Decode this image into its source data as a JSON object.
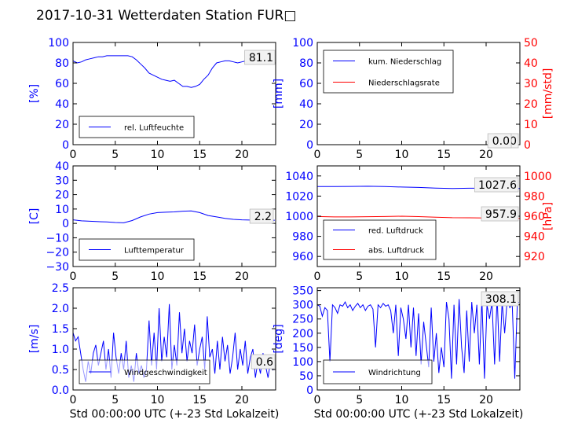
{
  "title": "2017-10-31 Wetterdaten Station FUR□",
  "colors": {
    "blue": "#0000ff",
    "red": "#ff0000",
    "black": "#000000"
  },
  "chart_data": [
    {
      "type": "line",
      "panel": "rel-humidity",
      "xlim": [
        0,
        24
      ],
      "ylim": [
        0,
        100
      ],
      "xticks": [
        0,
        5,
        10,
        15,
        20
      ],
      "yticks": [
        0,
        20,
        40,
        60,
        80,
        100
      ],
      "xlabel": "",
      "ylabel": "[%]",
      "legend": [
        "rel. Luftfeuchte"
      ],
      "legend_position": "lower-left",
      "value_box": "81.1",
      "series": [
        {
          "name": "rel. Luftfeuchte",
          "color": "#0000ff",
          "x": [
            0,
            0.5,
            1,
            1.5,
            2,
            2.5,
            3,
            3.5,
            4,
            4.5,
            5,
            5.5,
            6,
            6.5,
            7,
            7.5,
            8,
            8.5,
            9,
            9.5,
            10,
            10.5,
            11,
            11.5,
            12,
            12.5,
            13,
            13.5,
            14,
            14.5,
            15,
            15.5,
            16,
            16.5,
            17,
            17.5,
            18,
            18.5,
            19,
            19.5,
            20,
            20.5,
            21,
            21.5,
            22,
            22.5,
            23,
            23.5,
            23.9
          ],
          "y": [
            82,
            80,
            81,
            83,
            84,
            85,
            86,
            86,
            87,
            87,
            87,
            87,
            87,
            87,
            86,
            83,
            79,
            75,
            70,
            68,
            66,
            64,
            63,
            62,
            63,
            60,
            57,
            57,
            56,
            57,
            59,
            64,
            68,
            75,
            80,
            81,
            82,
            82,
            81,
            80,
            81,
            82,
            82,
            81,
            81,
            81,
            81,
            81,
            81
          ]
        }
      ]
    },
    {
      "type": "line",
      "panel": "precipitation",
      "xlim": [
        0,
        24
      ],
      "ylim": [
        0,
        100
      ],
      "ylim_right": [
        0,
        50
      ],
      "xticks": [
        0,
        5,
        10,
        15,
        20
      ],
      "yticks": [
        0,
        20,
        40,
        60,
        80,
        100
      ],
      "yticks_right": [
        0,
        10,
        20,
        30,
        40,
        50
      ],
      "xlabel": "",
      "ylabel": "[mm]",
      "ylabel_right": "[mm/std]",
      "legend": [
        "kum. Niederschlag",
        "Niederschlagsrate"
      ],
      "legend_position": "upper-left",
      "value_boxes": [
        "0.0",
        "0.0"
      ],
      "series": [
        {
          "name": "kum. Niederschlag",
          "color": "#0000ff",
          "axis": "left",
          "x": [
            0,
            24
          ],
          "y": [
            0,
            0
          ]
        },
        {
          "name": "Niederschlagsrate",
          "color": "#ff0000",
          "axis": "right",
          "x": [
            0,
            24
          ],
          "y": [
            0,
            0
          ]
        }
      ]
    },
    {
      "type": "line",
      "panel": "temperature",
      "xlim": [
        0,
        24
      ],
      "ylim": [
        -30,
        40
      ],
      "xticks": [
        0,
        5,
        10,
        15,
        20
      ],
      "yticks": [
        -30,
        -20,
        -10,
        0,
        10,
        20,
        30,
        40
      ],
      "xlabel": "",
      "ylabel": "[C]",
      "legend": [
        "Lufttemperatur"
      ],
      "legend_position": "lower-left",
      "value_box": "2.2",
      "series": [
        {
          "name": "Lufttemperatur",
          "color": "#0000ff",
          "x": [
            0,
            1,
            2,
            3,
            4,
            5,
            6,
            7,
            8,
            9,
            10,
            11,
            12,
            13,
            14,
            15,
            16,
            17,
            18,
            19,
            20,
            21,
            22,
            23,
            23.9
          ],
          "y": [
            2.5,
            1.8,
            1.5,
            1.2,
            1.0,
            0.6,
            0.4,
            2.0,
            4.5,
            6.5,
            7.5,
            7.8,
            8.0,
            8.5,
            8.7,
            7.5,
            5.5,
            4.5,
            3.5,
            2.8,
            2.5,
            2.3,
            2.2,
            2.2,
            2.2
          ]
        }
      ]
    },
    {
      "type": "line",
      "panel": "pressure",
      "xlim": [
        0,
        24
      ],
      "ylim": [
        950,
        1050
      ],
      "ylim_right": [
        910,
        1010
      ],
      "xticks": [
        0,
        5,
        10,
        15,
        20
      ],
      "yticks": [
        960,
        980,
        1000,
        1020,
        1040
      ],
      "yticks_right": [
        920,
        940,
        960,
        980,
        1000
      ],
      "xlabel": "",
      "ylabel": "",
      "ylabel_right": "[hPa]",
      "legend": [
        "red. Luftdruck",
        "abs. Luftdruck"
      ],
      "legend_position": "lower-left",
      "value_boxes": [
        "1027.6",
        "957.9"
      ],
      "series": [
        {
          "name": "red. Luftdruck",
          "color": "#0000ff",
          "axis": "left",
          "x": [
            0,
            2,
            4,
            6,
            8,
            10,
            12,
            14,
            16,
            18,
            20,
            22,
            24
          ],
          "y": [
            1029.5,
            1029.5,
            1029.6,
            1029.8,
            1029.5,
            1029.0,
            1028.6,
            1028.0,
            1027.5,
            1027.8,
            1027.8,
            1027.7,
            1027.6
          ]
        },
        {
          "name": "abs. Luftdruck",
          "color": "#ff0000",
          "axis": "right",
          "x": [
            0,
            2,
            4,
            6,
            8,
            10,
            12,
            14,
            16,
            18,
            20,
            22,
            24
          ],
          "y": [
            959.7,
            959.3,
            959.3,
            959.5,
            959.7,
            960.0,
            959.6,
            959.0,
            958.5,
            958.4,
            958.2,
            958.0,
            957.9
          ]
        }
      ]
    },
    {
      "type": "line",
      "panel": "wind-speed",
      "xlim": [
        0,
        24
      ],
      "ylim": [
        0,
        2.5
      ],
      "xticks": [
        0,
        5,
        10,
        15,
        20
      ],
      "yticks": [
        0.0,
        0.5,
        1.0,
        1.5,
        2.0,
        2.5
      ],
      "xlabel": "Std 00:00:00 UTC (+-23 Std Lokalzeit)",
      "ylabel": "[m/s]",
      "legend": [
        "Windgeschwindigkeit"
      ],
      "legend_position": "lower-center",
      "value_box": "0.6",
      "series": [
        {
          "name": "Windgeschwindigkeit",
          "color": "#0000ff",
          "x": [
            0,
            0.3,
            0.6,
            0.9,
            1.2,
            1.5,
            1.8,
            2.1,
            2.4,
            2.7,
            3.0,
            3.3,
            3.6,
            3.9,
            4.2,
            4.5,
            4.8,
            5.1,
            5.4,
            5.7,
            6.0,
            6.3,
            6.6,
            6.9,
            7.2,
            7.5,
            7.8,
            8.1,
            8.4,
            8.7,
            9.0,
            9.3,
            9.6,
            9.9,
            10.2,
            10.5,
            10.8,
            11.1,
            11.4,
            11.7,
            12.0,
            12.3,
            12.6,
            12.9,
            13.2,
            13.5,
            13.8,
            14.1,
            14.4,
            14.7,
            15.0,
            15.3,
            15.6,
            15.9,
            16.2,
            16.5,
            16.8,
            17.1,
            17.4,
            17.7,
            18.0,
            18.3,
            18.6,
            18.9,
            19.2,
            19.5,
            19.8,
            20.1,
            20.4,
            20.7,
            21.0,
            21.3,
            21.6,
            21.9,
            22.2,
            22.5,
            22.8,
            23.1,
            23.4,
            23.7,
            23.9
          ],
          "y": [
            1.4,
            1.2,
            1.3,
            0.9,
            0.5,
            0.2,
            0.7,
            0.4,
            0.9,
            1.1,
            0.6,
            0.9,
            1.2,
            0.5,
            1.0,
            0.3,
            1.4,
            0.8,
            0.4,
            0.9,
            0.5,
            1.2,
            0.3,
            0.6,
            0.2,
            0.9,
            0.4,
            0.6,
            0.3,
            0.5,
            1.7,
            0.6,
            1.4,
            0.5,
            2.0,
            0.7,
            1.3,
            0.8,
            2.1,
            0.5,
            1.1,
            0.6,
            1.9,
            0.9,
            1.5,
            0.7,
            1.2,
            0.9,
            1.6,
            0.6,
            1.0,
            1.3,
            0.5,
            1.8,
            0.8,
            1.0,
            0.4,
            1.2,
            0.5,
            1.3,
            0.7,
            1.1,
            0.4,
            0.8,
            1.4,
            0.5,
            1.0,
            0.6,
            1.2,
            0.4,
            0.8,
            1.0,
            0.3,
            0.7,
            0.4,
            0.9,
            0.6,
            0.3,
            0.7,
            0.5,
            0.6
          ]
        }
      ]
    },
    {
      "type": "line",
      "panel": "wind-direction",
      "xlim": [
        0,
        24
      ],
      "ylim": [
        0,
        360
      ],
      "xticks": [
        0,
        5,
        10,
        15,
        20
      ],
      "yticks": [
        0,
        50,
        100,
        150,
        200,
        250,
        300,
        350
      ],
      "xlabel": "Std 00:00:00 UTC (+-23 Std Lokalzeit)",
      "ylabel": "[deg]",
      "legend": [
        "Windrichtung"
      ],
      "legend_position": "lower-left",
      "value_box": "308.1",
      "series": [
        {
          "name": "Windrichtung",
          "color": "#0000ff",
          "x": [
            0,
            0.3,
            0.6,
            0.9,
            1.2,
            1.5,
            1.8,
            2.1,
            2.4,
            2.7,
            3.0,
            3.3,
            3.6,
            3.9,
            4.2,
            4.5,
            4.8,
            5.1,
            5.4,
            5.7,
            6.0,
            6.3,
            6.6,
            6.9,
            7.2,
            7.5,
            7.8,
            8.1,
            8.4,
            8.7,
            9.0,
            9.3,
            9.6,
            9.9,
            10.2,
            10.5,
            10.8,
            11.1,
            11.4,
            11.7,
            12.0,
            12.3,
            12.6,
            12.9,
            13.2,
            13.5,
            13.8,
            14.1,
            14.4,
            14.7,
            15.0,
            15.3,
            15.6,
            15.9,
            16.2,
            16.5,
            16.8,
            17.1,
            17.4,
            17.7,
            18.0,
            18.3,
            18.6,
            18.9,
            19.2,
            19.5,
            19.8,
            20.1,
            20.4,
            20.7,
            21.0,
            21.3,
            21.6,
            21.9,
            22.2,
            22.5,
            22.8,
            23.1,
            23.4,
            23.7,
            23.9
          ],
          "y": [
            300,
            295,
            260,
            290,
            280,
            100,
            300,
            290,
            270,
            300,
            295,
            310,
            290,
            300,
            280,
            295,
            305,
            290,
            300,
            280,
            295,
            300,
            285,
            150,
            300,
            290,
            305,
            295,
            300,
            280,
            200,
            300,
            120,
            290,
            250,
            180,
            300,
            150,
            290,
            120,
            270,
            90,
            240,
            160,
            80,
            290,
            100,
            200,
            60,
            150,
            80,
            310,
            250,
            40,
            300,
            90,
            320,
            150,
            60,
            280,
            100,
            310,
            200,
            300,
            90,
            320,
            40,
            300,
            250,
            310,
            90,
            330,
            100,
            310,
            200,
            320,
            290,
            300,
            40,
            310,
            308
          ]
        }
      ]
    }
  ]
}
